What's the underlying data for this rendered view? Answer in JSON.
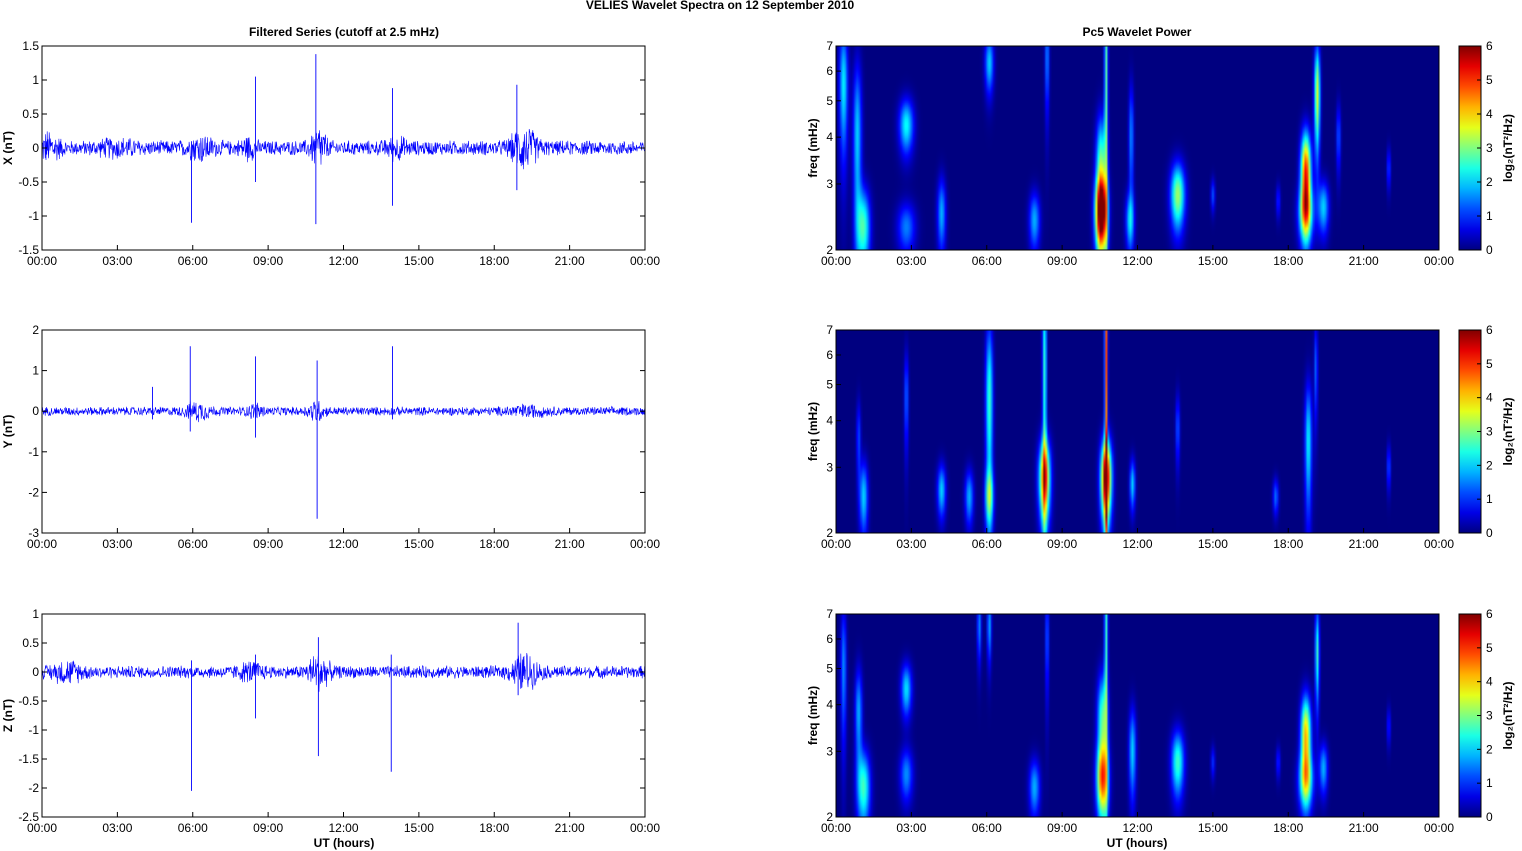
{
  "figure_title": "VELIES Wavelet Spectra on 12 September 2010",
  "left_title": "Filtered Series (cutoff at 2.5 mHz)",
  "right_title": "Pc5 Wavelet Power",
  "xlabel": "UT (hours)",
  "x_ticks": [
    "00:00",
    "03:00",
    "06:00",
    "09:00",
    "12:00",
    "15:00",
    "18:00",
    "21:00",
    "00:00"
  ],
  "freq_label": "freq (mHz)",
  "freq_ticks": [
    "2",
    "3",
    "4",
    "5",
    "6",
    "7"
  ],
  "colorbar_label": "log₂(nT²/Hz)",
  "colorbar_ticks": [
    "0",
    "1",
    "2",
    "3",
    "4",
    "5",
    "6"
  ],
  "colors": {
    "trace": "#0000ff",
    "spectrum_background": "#00009a"
  },
  "chart_data": [
    {
      "type": "line",
      "panel": "X",
      "ylabel": "X (nT)",
      "xlim_hours": [
        0,
        24
      ],
      "ylim": [
        -1.5,
        1.5
      ],
      "y_ticks": [
        "-1.5",
        "-1",
        "-0.5",
        "0",
        "0.5",
        "1",
        "1.5"
      ],
      "y_values": [
        -1.5,
        -1,
        -0.5,
        0,
        0.5,
        1,
        1.5
      ],
      "background_amplitude": 0.12,
      "activity_bursts": [
        {
          "t": 0.3,
          "amp": 0.2,
          "width": 0.4
        },
        {
          "t": 3.0,
          "amp": 0.08,
          "width": 0.8
        },
        {
          "t": 6.3,
          "amp": 0.15,
          "width": 0.5
        },
        {
          "t": 8.2,
          "amp": 0.12,
          "width": 0.3
        },
        {
          "t": 11.0,
          "amp": 0.3,
          "width": 0.3
        },
        {
          "t": 14.1,
          "amp": 0.12,
          "width": 0.4
        },
        {
          "t": 19.2,
          "amp": 0.3,
          "width": 0.5
        }
      ],
      "spikes": [
        {
          "t": 5.95,
          "max": 0.1,
          "min": -1.1
        },
        {
          "t": 8.5,
          "max": 1.05,
          "min": -0.5
        },
        {
          "t": 10.9,
          "max": 1.38,
          "min": -1.12
        },
        {
          "t": 13.95,
          "max": 0.88,
          "min": -0.85
        },
        {
          "t": 18.9,
          "max": 0.93,
          "min": -0.62
        }
      ]
    },
    {
      "type": "line",
      "panel": "Y",
      "ylabel": "Y (nT)",
      "xlim_hours": [
        0,
        24
      ],
      "ylim": [
        -3,
        2
      ],
      "y_ticks": [
        "-3",
        "-2",
        "-1",
        "0",
        "1",
        "2"
      ],
      "y_values": [
        -3,
        -2,
        -1,
        0,
        1,
        2
      ],
      "background_amplitude": 0.12,
      "activity_bursts": [
        {
          "t": 6.2,
          "amp": 0.2,
          "width": 0.5
        },
        {
          "t": 8.5,
          "amp": 0.15,
          "width": 0.3
        },
        {
          "t": 10.9,
          "amp": 0.25,
          "width": 0.3
        },
        {
          "t": 19.3,
          "amp": 0.1,
          "width": 0.8
        }
      ],
      "spikes": [
        {
          "t": 5.9,
          "max": 1.6,
          "min": -0.5
        },
        {
          "t": 8.5,
          "max": 1.35,
          "min": -0.65
        },
        {
          "t": 10.95,
          "max": 1.25,
          "min": -2.65
        },
        {
          "t": 13.95,
          "max": 1.6,
          "min": -0.2
        },
        {
          "t": 4.4,
          "max": 0.6,
          "min": -0.2
        }
      ]
    },
    {
      "type": "line",
      "panel": "Z",
      "ylabel": "Z (nT)",
      "xlim_hours": [
        0,
        24
      ],
      "ylim": [
        -2.5,
        1
      ],
      "y_ticks": [
        "-2.5",
        "-2",
        "-1.5",
        "-1",
        "-0.5",
        "0",
        "0.5",
        "1"
      ],
      "y_values": [
        -2.5,
        -2,
        -1.5,
        -1,
        -0.5,
        0,
        0.5,
        1
      ],
      "background_amplitude": 0.12,
      "activity_bursts": [
        {
          "t": 1.0,
          "amp": 0.15,
          "width": 0.6
        },
        {
          "t": 8.3,
          "amp": 0.12,
          "width": 0.5
        },
        {
          "t": 11.0,
          "amp": 0.3,
          "width": 0.4
        },
        {
          "t": 19.2,
          "amp": 0.3,
          "width": 0.5
        }
      ],
      "spikes": [
        {
          "t": 5.95,
          "max": 0.2,
          "min": -2.05
        },
        {
          "t": 8.5,
          "max": 0.3,
          "min": -0.8
        },
        {
          "t": 11.0,
          "max": 0.6,
          "min": -1.45
        },
        {
          "t": 13.9,
          "max": 0.3,
          "min": -1.72
        },
        {
          "t": 18.95,
          "max": 0.85,
          "min": -0.4
        }
      ]
    },
    {
      "type": "heatmap",
      "panel": "X",
      "xlim_hours": [
        0,
        24
      ],
      "ylim_mhz": [
        2,
        7
      ],
      "colorbar_range": [
        0,
        6
      ],
      "blobs": [
        {
          "t": 0.3,
          "f": 5.5,
          "p": 2.2,
          "sx": 0.12,
          "sy": 1.5
        },
        {
          "t": 0.85,
          "f": 4.0,
          "p": 2.0,
          "sx": 0.12,
          "sy": 1.5
        },
        {
          "t": 1.1,
          "f": 2.3,
          "p": 2.6,
          "sx": 0.18,
          "sy": 0.4
        },
        {
          "t": 2.8,
          "f": 4.3,
          "p": 2.3,
          "sx": 0.2,
          "sy": 0.5
        },
        {
          "t": 2.8,
          "f": 2.3,
          "p": 1.5,
          "sx": 0.25,
          "sy": 0.25
        },
        {
          "t": 4.2,
          "f": 2.5,
          "p": 1.8,
          "sx": 0.12,
          "sy": 0.4
        },
        {
          "t": 6.1,
          "f": 6.3,
          "p": 2.0,
          "sx": 0.12,
          "sy": 0.8
        },
        {
          "t": 7.9,
          "f": 2.4,
          "p": 1.8,
          "sx": 0.15,
          "sy": 0.3
        },
        {
          "t": 8.4,
          "f": 6.5,
          "p": 1.6,
          "sx": 0.06,
          "sy": 1.5
        },
        {
          "t": 10.55,
          "f": 2.5,
          "p": 5.9,
          "sx": 0.16,
          "sy": 0.4
        },
        {
          "t": 10.55,
          "f": 3.3,
          "p": 3.0,
          "sx": 0.14,
          "sy": 0.8
        },
        {
          "t": 10.75,
          "f": 6.0,
          "p": 2.8,
          "sx": 0.05,
          "sy": 3.5
        },
        {
          "t": 11.7,
          "f": 2.4,
          "p": 2.0,
          "sx": 0.12,
          "sy": 0.3
        },
        {
          "t": 11.75,
          "f": 4.0,
          "p": 1.6,
          "sx": 0.07,
          "sy": 1.0
        },
        {
          "t": 13.6,
          "f": 2.8,
          "p": 3.2,
          "sx": 0.2,
          "sy": 0.4
        },
        {
          "t": 15.0,
          "f": 2.8,
          "p": 1.2,
          "sx": 0.06,
          "sy": 0.2
        },
        {
          "t": 17.6,
          "f": 2.7,
          "p": 1.0,
          "sx": 0.06,
          "sy": 0.2
        },
        {
          "t": 18.7,
          "f": 3.2,
          "p": 5.2,
          "sx": 0.14,
          "sy": 0.6
        },
        {
          "t": 18.7,
          "f": 2.5,
          "p": 3.0,
          "sx": 0.2,
          "sy": 0.3
        },
        {
          "t": 19.15,
          "f": 5.2,
          "p": 3.6,
          "sx": 0.08,
          "sy": 1.2
        },
        {
          "t": 19.4,
          "f": 2.6,
          "p": 2.0,
          "sx": 0.15,
          "sy": 0.3
        },
        {
          "t": 20.0,
          "f": 4.0,
          "p": 1.3,
          "sx": 0.06,
          "sy": 0.6
        },
        {
          "t": 22.0,
          "f": 3.3,
          "p": 1.2,
          "sx": 0.05,
          "sy": 0.3
        }
      ]
    },
    {
      "type": "heatmap",
      "panel": "Y",
      "xlim_hours": [
        0,
        24
      ],
      "ylim_mhz": [
        2,
        7
      ],
      "colorbar_range": [
        0,
        6
      ],
      "blobs": [
        {
          "t": 1.1,
          "f": 2.5,
          "p": 2.0,
          "sx": 0.12,
          "sy": 0.4
        },
        {
          "t": 0.9,
          "f": 3.6,
          "p": 1.2,
          "sx": 0.06,
          "sy": 0.6
        },
        {
          "t": 2.8,
          "f": 4.6,
          "p": 1.4,
          "sx": 0.06,
          "sy": 1.0
        },
        {
          "t": 4.2,
          "f": 2.6,
          "p": 2.0,
          "sx": 0.12,
          "sy": 0.3
        },
        {
          "t": 5.3,
          "f": 2.5,
          "p": 1.8,
          "sx": 0.12,
          "sy": 0.3
        },
        {
          "t": 6.1,
          "f": 4.5,
          "p": 2.6,
          "sx": 0.1,
          "sy": 1.8
        },
        {
          "t": 6.1,
          "f": 2.5,
          "p": 2.2,
          "sx": 0.12,
          "sy": 0.3
        },
        {
          "t": 8.3,
          "f": 2.8,
          "p": 4.5,
          "sx": 0.16,
          "sy": 0.5
        },
        {
          "t": 8.3,
          "f": 5.5,
          "p": 2.6,
          "sx": 0.06,
          "sy": 3.0
        },
        {
          "t": 10.75,
          "f": 2.8,
          "p": 5.8,
          "sx": 0.15,
          "sy": 0.5
        },
        {
          "t": 10.75,
          "f": 6.0,
          "p": 5.0,
          "sx": 0.04,
          "sy": 4.0
        },
        {
          "t": 11.8,
          "f": 2.7,
          "p": 2.0,
          "sx": 0.08,
          "sy": 0.3
        },
        {
          "t": 13.6,
          "f": 3.8,
          "p": 1.3,
          "sx": 0.06,
          "sy": 0.6
        },
        {
          "t": 17.5,
          "f": 2.5,
          "p": 1.4,
          "sx": 0.08,
          "sy": 0.2
        },
        {
          "t": 18.8,
          "f": 3.5,
          "p": 2.2,
          "sx": 0.1,
          "sy": 1.0
        },
        {
          "t": 19.1,
          "f": 5.5,
          "p": 1.4,
          "sx": 0.05,
          "sy": 1.2
        },
        {
          "t": 22.0,
          "f": 3.0,
          "p": 1.3,
          "sx": 0.05,
          "sy": 0.3
        }
      ]
    },
    {
      "type": "heatmap",
      "panel": "Z",
      "xlim_hours": [
        0,
        24
      ],
      "ylim_mhz": [
        2,
        7
      ],
      "colorbar_range": [
        0,
        6
      ],
      "blobs": [
        {
          "t": 0.3,
          "f": 5.0,
          "p": 1.6,
          "sx": 0.08,
          "sy": 1.5
        },
        {
          "t": 0.9,
          "f": 3.8,
          "p": 1.8,
          "sx": 0.1,
          "sy": 0.8
        },
        {
          "t": 1.1,
          "f": 2.4,
          "p": 2.6,
          "sx": 0.18,
          "sy": 0.4
        },
        {
          "t": 2.8,
          "f": 4.4,
          "p": 2.1,
          "sx": 0.15,
          "sy": 0.5
        },
        {
          "t": 2.8,
          "f": 2.6,
          "p": 1.6,
          "sx": 0.18,
          "sy": 0.3
        },
        {
          "t": 5.7,
          "f": 6.5,
          "p": 1.6,
          "sx": 0.06,
          "sy": 1.0
        },
        {
          "t": 6.1,
          "f": 6.5,
          "p": 1.8,
          "sx": 0.06,
          "sy": 1.0
        },
        {
          "t": 7.9,
          "f": 2.4,
          "p": 1.8,
          "sx": 0.15,
          "sy": 0.3
        },
        {
          "t": 8.4,
          "f": 6.0,
          "p": 1.4,
          "sx": 0.05,
          "sy": 1.5
        },
        {
          "t": 10.6,
          "f": 2.5,
          "p": 4.0,
          "sx": 0.16,
          "sy": 0.4
        },
        {
          "t": 10.6,
          "f": 3.6,
          "p": 2.8,
          "sx": 0.14,
          "sy": 0.8
        },
        {
          "t": 10.75,
          "f": 6.2,
          "p": 2.6,
          "sx": 0.05,
          "sy": 3.0
        },
        {
          "t": 11.8,
          "f": 3.0,
          "p": 2.0,
          "sx": 0.1,
          "sy": 0.6
        },
        {
          "t": 13.6,
          "f": 2.8,
          "p": 2.6,
          "sx": 0.18,
          "sy": 0.4
        },
        {
          "t": 15.0,
          "f": 2.8,
          "p": 1.0,
          "sx": 0.06,
          "sy": 0.2
        },
        {
          "t": 17.6,
          "f": 2.8,
          "p": 1.0,
          "sx": 0.06,
          "sy": 0.2
        },
        {
          "t": 18.7,
          "f": 3.3,
          "p": 4.2,
          "sx": 0.14,
          "sy": 0.6
        },
        {
          "t": 18.7,
          "f": 2.5,
          "p": 2.8,
          "sx": 0.2,
          "sy": 0.3
        },
        {
          "t": 19.15,
          "f": 5.5,
          "p": 2.6,
          "sx": 0.06,
          "sy": 1.2
        },
        {
          "t": 19.4,
          "f": 2.7,
          "p": 1.8,
          "sx": 0.12,
          "sy": 0.3
        },
        {
          "t": 22.0,
          "f": 3.5,
          "p": 1.0,
          "sx": 0.05,
          "sy": 0.3
        }
      ]
    }
  ]
}
